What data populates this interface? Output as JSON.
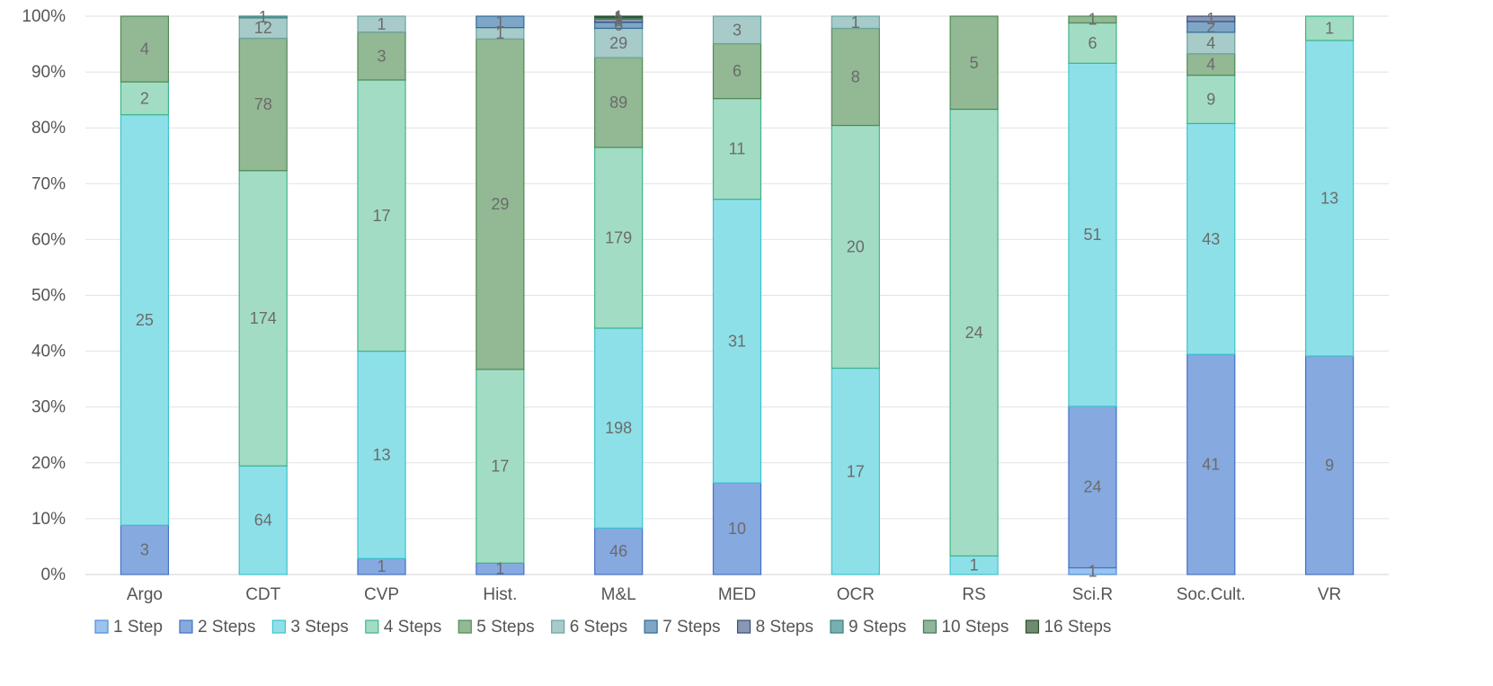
{
  "chart_data": {
    "type": "bar",
    "stacked": "percent",
    "title": "",
    "xlabel": "",
    "ylabel": "",
    "ylim": [
      0,
      100
    ],
    "y_ticks": [
      "0%",
      "10%",
      "20%",
      "30%",
      "40%",
      "50%",
      "60%",
      "70%",
      "80%",
      "90%",
      "100%"
    ],
    "grid": true,
    "legend_position": "bottom",
    "categories": [
      "Argo",
      "CDT",
      "CVP",
      "Hist.",
      "M&L",
      "MED",
      "OCR",
      "RS",
      "Sci.R",
      "Soc.Cult.",
      "VR"
    ],
    "series": [
      {
        "name": "1 Step",
        "color": "#9cc3ee",
        "stroke": "#4a8fd8",
        "values": [
          0,
          0,
          0,
          0,
          0,
          0,
          0,
          0,
          1,
          0,
          0
        ]
      },
      {
        "name": "2 Steps",
        "color": "#86a9e0",
        "stroke": "#4472c4",
        "values": [
          3,
          0,
          1,
          1,
          46,
          10,
          0,
          0,
          24,
          41,
          9
        ]
      },
      {
        "name": "3 Steps",
        "color": "#8ee0e8",
        "stroke": "#3cc4cf",
        "values": [
          25,
          64,
          13,
          0,
          198,
          31,
          17,
          1,
          51,
          43,
          13
        ]
      },
      {
        "name": "4 Steps",
        "color": "#a3dcc4",
        "stroke": "#3fb58a",
        "values": [
          2,
          174,
          17,
          17,
          179,
          11,
          20,
          24,
          6,
          9,
          1
        ]
      },
      {
        "name": "5 Steps",
        "color": "#93b894",
        "stroke": "#4f8a56",
        "values": [
          4,
          78,
          3,
          29,
          89,
          6,
          8,
          5,
          1,
          4,
          0
        ]
      },
      {
        "name": "6 Steps",
        "color": "#a7cbc8",
        "stroke": "#6aa3a0",
        "values": [
          0,
          12,
          1,
          1,
          29,
          3,
          1,
          0,
          0,
          4,
          0
        ]
      },
      {
        "name": "7 Steps",
        "color": "#7fa6c7",
        "stroke": "#2f6a9a",
        "values": [
          0,
          0,
          0,
          1,
          6,
          0,
          0,
          0,
          0,
          2,
          0
        ]
      },
      {
        "name": "8 Steps",
        "color": "#8797b4",
        "stroke": "#3a4d75",
        "values": [
          0,
          0,
          0,
          0,
          3,
          0,
          0,
          0,
          0,
          1,
          0
        ]
      },
      {
        "name": "9 Steps",
        "color": "#78b0b0",
        "stroke": "#3a8080",
        "values": [
          0,
          1,
          0,
          0,
          1,
          0,
          0,
          0,
          0,
          0,
          0
        ]
      },
      {
        "name": "10 Steps",
        "color": "#8fb59a",
        "stroke": "#3f7a52",
        "values": [
          0,
          0,
          0,
          0,
          1,
          0,
          0,
          0,
          0,
          0,
          0
        ]
      },
      {
        "name": "16 Steps",
        "color": "#6f8a6f",
        "stroke": "#2f4f2f",
        "values": [
          0,
          0,
          0,
          0,
          1,
          0,
          0,
          0,
          0,
          0,
          0
        ]
      }
    ]
  }
}
